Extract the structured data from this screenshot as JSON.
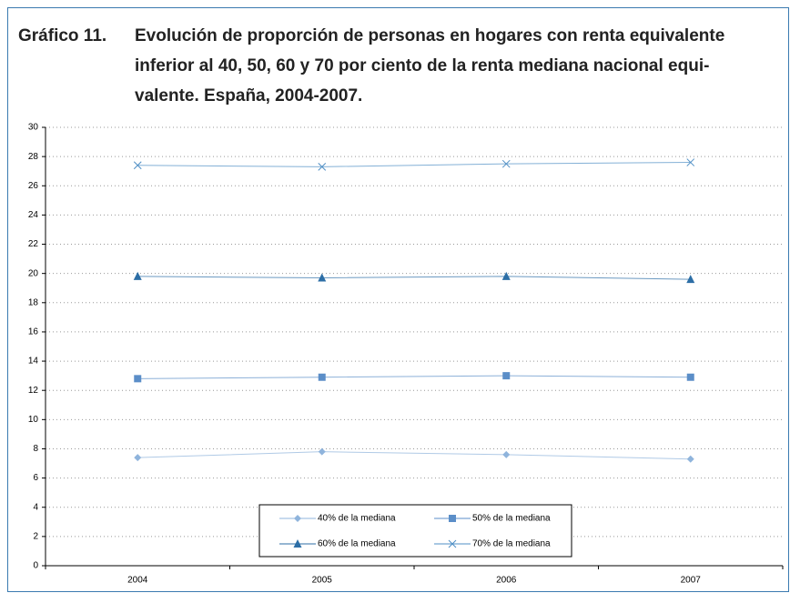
{
  "chart_data": {
    "type": "line",
    "title_number": "Gráfico 11.",
    "title": [
      "Evolución de proporción de personas en hogares con renta equivalente",
      "inferior al 40, 50, 60 y 70 por ciento de la renta mediana nacional equi-",
      "valente. España, 2004-2007."
    ],
    "categories": [
      "2004",
      "2005",
      "2006",
      "2007"
    ],
    "series": [
      {
        "name": "40% de la mediana",
        "color": "#8fb4dc",
        "marker": "diamond",
        "values": [
          7.4,
          7.8,
          7.6,
          7.3
        ]
      },
      {
        "name": "50% de la mediana",
        "color": "#5b8ec8",
        "marker": "square",
        "values": [
          12.8,
          12.9,
          13.0,
          12.9
        ]
      },
      {
        "name": "60% de la mediana",
        "color": "#2c6ea6",
        "marker": "triangle",
        "values": [
          19.8,
          19.7,
          19.8,
          19.6
        ]
      },
      {
        "name": "70% de la mediana",
        "color": "#4f8fc5",
        "marker": "x",
        "values": [
          27.4,
          27.3,
          27.5,
          27.6
        ]
      }
    ],
    "ylim": [
      0,
      30
    ],
    "yticks": [
      0,
      2,
      4,
      6,
      8,
      10,
      12,
      14,
      16,
      18,
      20,
      22,
      24,
      26,
      28,
      30
    ],
    "grid": true,
    "legend": "bottom"
  }
}
